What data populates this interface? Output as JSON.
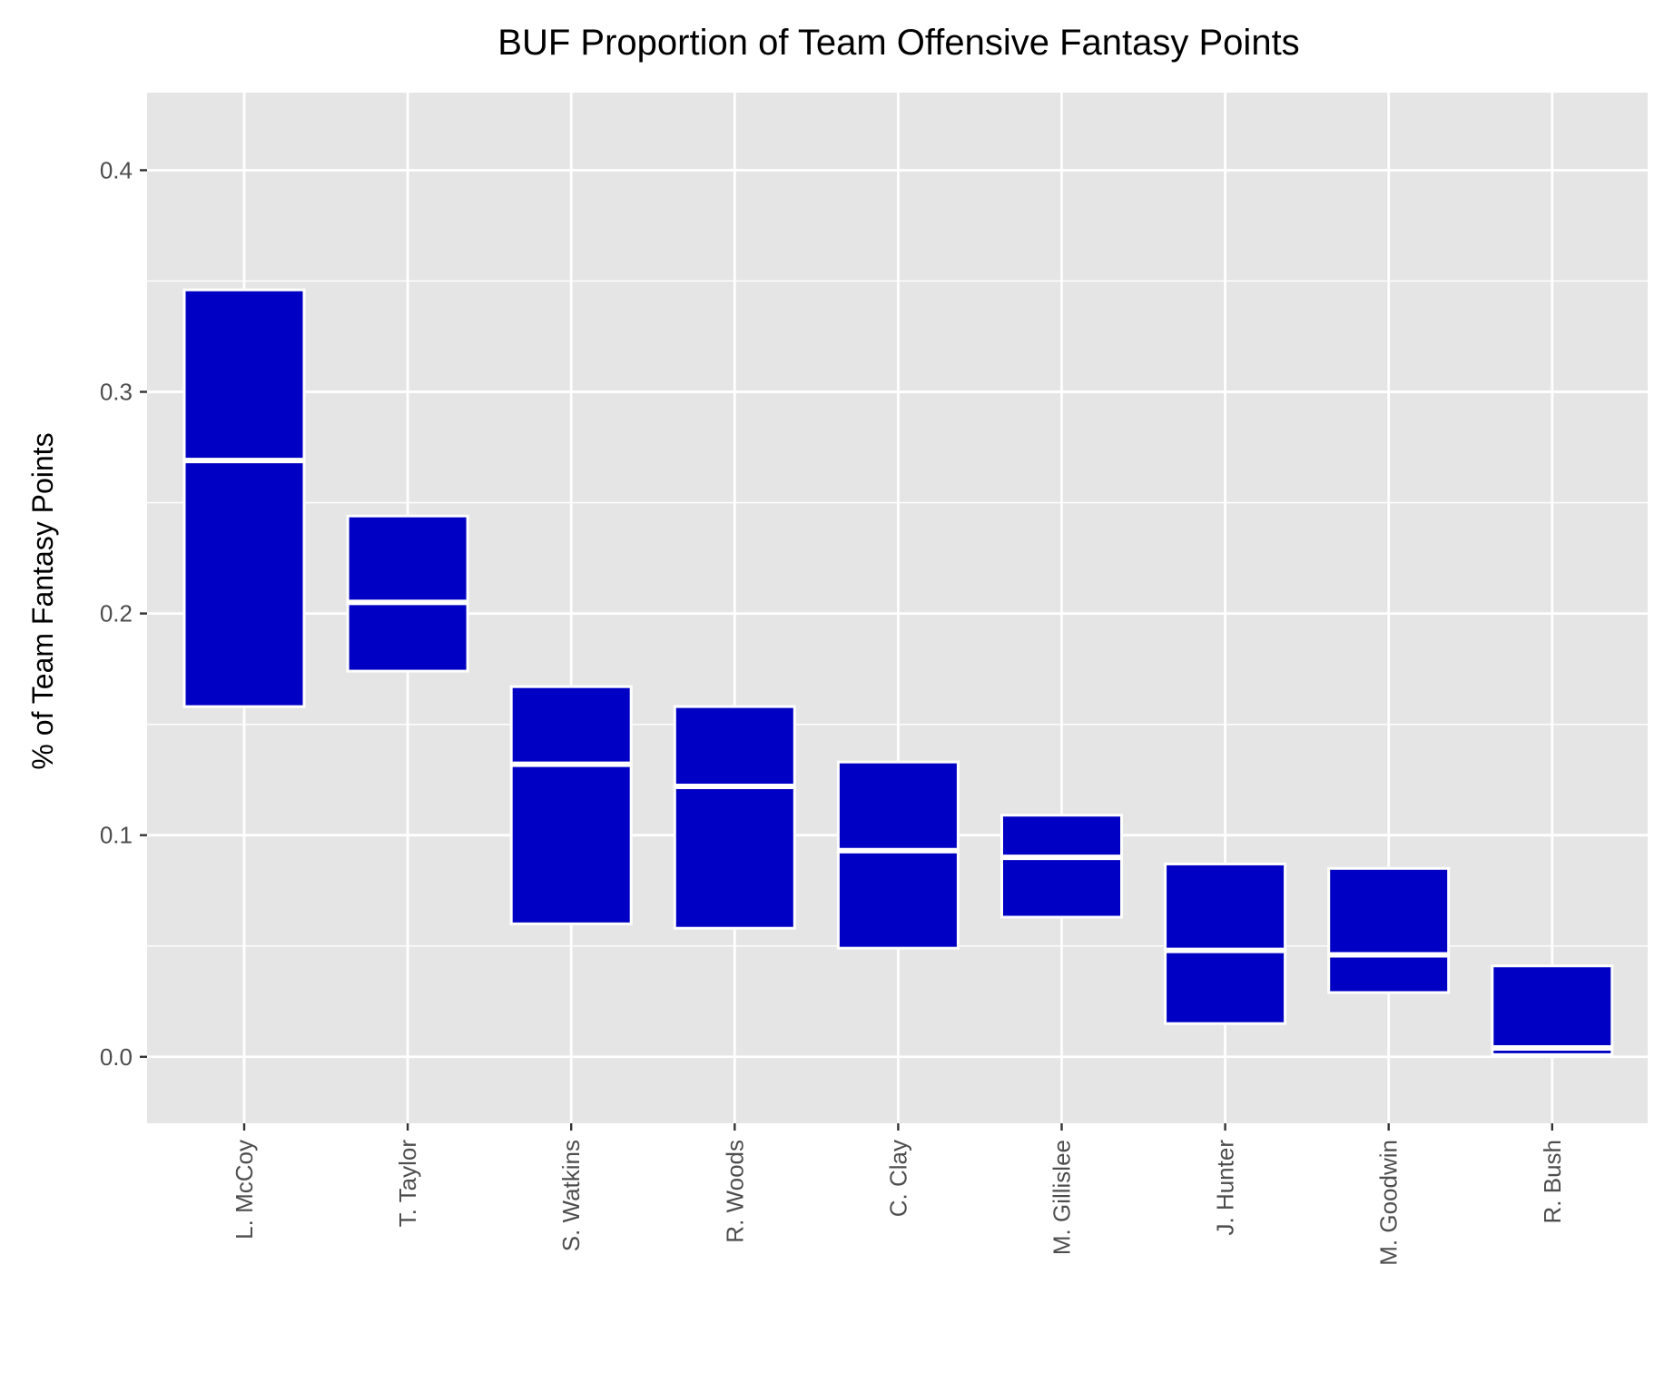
{
  "chart_data": {
    "type": "boxplot",
    "title": "BUF Proportion of Team Offensive Fantasy Points",
    "xlabel": "",
    "ylabel": "% of Team Fantasy Points",
    "ylim": [
      -0.03,
      0.435
    ],
    "yticks": [
      0.0,
      0.1,
      0.2,
      0.3,
      0.4
    ],
    "ytick_labels": [
      "0.0",
      "0.1",
      "0.2",
      "0.3",
      "0.4"
    ],
    "categories": [
      "L. McCoy",
      "T. Taylor",
      "S. Watkins",
      "R. Woods",
      "C. Clay",
      "M. Gillislee",
      "J. Hunter",
      "M. Goodwin",
      "R. Bush"
    ],
    "boxes": [
      {
        "name": "L. McCoy",
        "low": 0.158,
        "mid": 0.269,
        "high": 0.346
      },
      {
        "name": "T. Taylor",
        "low": 0.174,
        "mid": 0.205,
        "high": 0.244
      },
      {
        "name": "S. Watkins",
        "low": 0.06,
        "mid": 0.132,
        "high": 0.167
      },
      {
        "name": "R. Woods",
        "low": 0.058,
        "mid": 0.122,
        "high": 0.158
      },
      {
        "name": "C. Clay",
        "low": 0.049,
        "mid": 0.093,
        "high": 0.133
      },
      {
        "name": "M. Gillislee",
        "low": 0.063,
        "mid": 0.09,
        "high": 0.109
      },
      {
        "name": "J. Hunter",
        "low": 0.015,
        "mid": 0.048,
        "high": 0.087
      },
      {
        "name": "M. Goodwin",
        "low": 0.029,
        "mid": 0.046,
        "high": 0.085
      },
      {
        "name": "R. Bush",
        "low": 0.001,
        "mid": 0.004,
        "high": 0.041
      }
    ],
    "grid": true,
    "legend": "none",
    "colors": {
      "box_fill": "#0000c4",
      "box_stroke": "#ffffff",
      "panel": "#e5e5e5",
      "grid": "#ffffff",
      "text": "#000000",
      "tick_text": "#4d4d4d"
    }
  }
}
